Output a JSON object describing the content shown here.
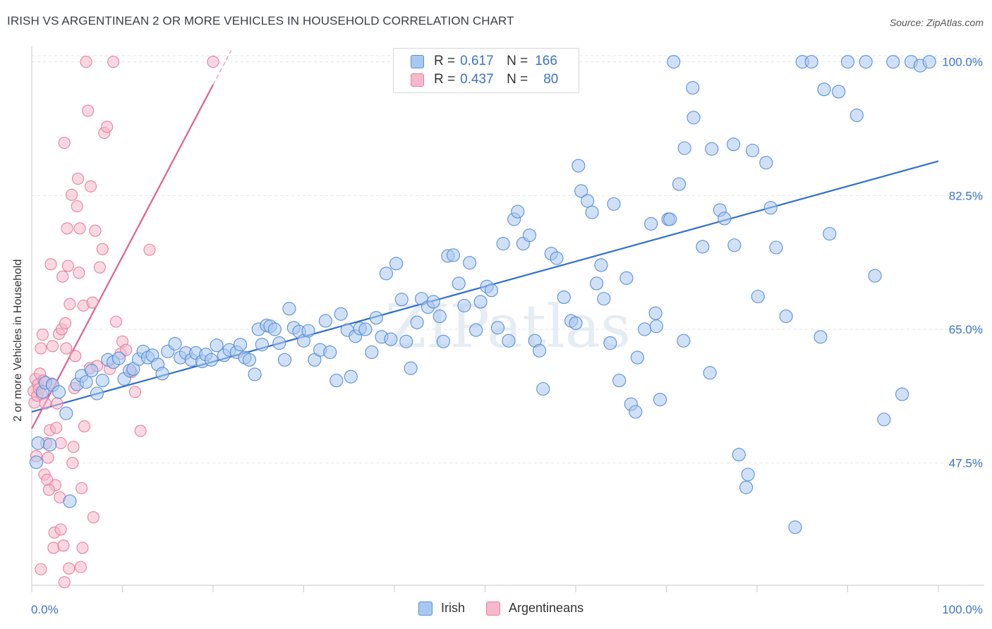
{
  "title": "IRISH VS ARGENTINEAN 2 OR MORE VEHICLES IN HOUSEHOLD CORRELATION CHART",
  "source": "Source: ZipAtlas.com",
  "watermark": "ZIPatlas",
  "legend": {
    "irish": {
      "r_label": "R =",
      "r_value": "0.617",
      "n_label": "N =",
      "n_value": "166"
    },
    "argentinean": {
      "r_label": "R =",
      "r_value": "0.437",
      "n_label": "N =",
      "n_value": "80"
    }
  },
  "bottom_legend": {
    "irish": "Irish",
    "argentinean": "Argentineans"
  },
  "colors": {
    "irish_fill": "#a9c8f0",
    "irish_stroke": "#5b8fd6",
    "irish_line": "#2f6fcc",
    "arg_fill": "#f6b8cb",
    "arg_stroke": "#e87fa0",
    "arg_line": "#e0608e",
    "tick_label": "#3a74c8",
    "grid": "#e3e3e3"
  },
  "chart_data": {
    "type": "scatter",
    "title": "IRISH VS ARGENTINEAN 2 OR MORE VEHICLES IN HOUSEHOLD CORRELATION CHART",
    "xlabel": "",
    "ylabel": "2 or more Vehicles in Household",
    "xlim": [
      0,
      100
    ],
    "ylim": [
      31.5,
      102
    ],
    "x_tick_labels": [
      "0.0%",
      "100.0%"
    ],
    "y_ticks": [
      47.5,
      65.0,
      82.5,
      100.0
    ],
    "y_tick_labels": [
      "47.5%",
      "65.0%",
      "82.5%",
      "100.0%"
    ],
    "series": [
      {
        "name": "Irish",
        "trend": {
          "x": [
            0,
            100
          ],
          "y": [
            54.2,
            87.0
          ]
        },
        "points": [
          [
            0.5,
            47.6
          ],
          [
            0.7,
            50.1
          ],
          [
            1.2,
            56.8
          ],
          [
            1.5,
            58.0
          ],
          [
            2.0,
            49.9
          ],
          [
            2.3,
            57.7
          ],
          [
            3.0,
            56.8
          ],
          [
            3.8,
            54.0
          ],
          [
            4.2,
            42.5
          ],
          [
            5.0,
            57.8
          ],
          [
            5.5,
            58.9
          ],
          [
            6.0,
            58.1
          ],
          [
            6.6,
            59.6
          ],
          [
            7.2,
            56.6
          ],
          [
            7.8,
            58.3
          ],
          [
            8.4,
            61.0
          ],
          [
            9.0,
            60.7
          ],
          [
            9.6,
            61.2
          ],
          [
            10.2,
            58.5
          ],
          [
            10.8,
            59.6
          ],
          [
            11.2,
            59.8
          ],
          [
            11.8,
            61.1
          ],
          [
            12.3,
            62.1
          ],
          [
            12.8,
            61.3
          ],
          [
            13.3,
            61.6
          ],
          [
            13.9,
            60.4
          ],
          [
            14.4,
            59.2
          ],
          [
            15.0,
            62.1
          ],
          [
            15.8,
            63.1
          ],
          [
            16.4,
            61.3
          ],
          [
            17.0,
            61.9
          ],
          [
            17.6,
            61.0
          ],
          [
            18.1,
            61.9
          ],
          [
            18.8,
            60.8
          ],
          [
            19.2,
            61.7
          ],
          [
            19.8,
            61.0
          ],
          [
            20.4,
            62.9
          ],
          [
            21.2,
            61.6
          ],
          [
            21.8,
            62.3
          ],
          [
            22.6,
            62.0
          ],
          [
            23.0,
            63.0
          ],
          [
            23.5,
            61.3
          ],
          [
            24.0,
            61.0
          ],
          [
            24.6,
            59.1
          ],
          [
            25.0,
            65.0
          ],
          [
            25.4,
            63.0
          ],
          [
            25.9,
            65.5
          ],
          [
            26.3,
            65.4
          ],
          [
            26.8,
            65.0
          ],
          [
            27.3,
            63.2
          ],
          [
            27.9,
            61.0
          ],
          [
            28.4,
            67.7
          ],
          [
            28.9,
            65.2
          ],
          [
            29.5,
            64.7
          ],
          [
            30.0,
            63.5
          ],
          [
            30.5,
            64.8
          ],
          [
            31.2,
            61.0
          ],
          [
            31.8,
            62.3
          ],
          [
            32.4,
            66.1
          ],
          [
            32.9,
            62.0
          ],
          [
            33.6,
            58.3
          ],
          [
            34.1,
            67.0
          ],
          [
            34.8,
            64.9
          ],
          [
            35.2,
            58.8
          ],
          [
            35.7,
            64.1
          ],
          [
            36.2,
            65.1
          ],
          [
            36.8,
            65.0
          ],
          [
            37.5,
            62.0
          ],
          [
            38.0,
            66.5
          ],
          [
            38.6,
            64.0
          ],
          [
            39.1,
            72.3
          ],
          [
            39.6,
            63.7
          ],
          [
            40.2,
            73.6
          ],
          [
            40.8,
            68.9
          ],
          [
            41.3,
            63.4
          ],
          [
            41.8,
            59.9
          ],
          [
            42.5,
            65.9
          ],
          [
            43.0,
            69.0
          ],
          [
            43.7,
            67.9
          ],
          [
            44.3,
            68.6
          ],
          [
            45.0,
            66.7
          ],
          [
            45.4,
            63.4
          ],
          [
            45.9,
            74.6
          ],
          [
            46.5,
            74.7
          ],
          [
            47.1,
            71.0
          ],
          [
            47.7,
            68.1
          ],
          [
            48.3,
            73.7
          ],
          [
            49.0,
            64.9
          ],
          [
            49.5,
            68.6
          ],
          [
            50.2,
            70.6
          ],
          [
            50.7,
            70.1
          ],
          [
            51.4,
            65.2
          ],
          [
            52.0,
            76.2
          ],
          [
            52.6,
            63.5
          ],
          [
            53.2,
            79.4
          ],
          [
            53.6,
            80.4
          ],
          [
            54.2,
            76.2
          ],
          [
            54.9,
            77.3
          ],
          [
            55.5,
            63.5
          ],
          [
            56.0,
            62.2
          ],
          [
            56.4,
            57.2
          ],
          [
            57.3,
            74.9
          ],
          [
            57.9,
            74.3
          ],
          [
            58.7,
            69.2
          ],
          [
            59.5,
            66.1
          ],
          [
            60.0,
            65.8
          ],
          [
            60.6,
            83.1
          ],
          [
            61.3,
            81.8
          ],
          [
            61.8,
            80.3
          ],
          [
            62.3,
            71.0
          ],
          [
            62.8,
            73.4
          ],
          [
            63.8,
            63.2
          ],
          [
            64.2,
            81.4
          ],
          [
            64.8,
            58.3
          ],
          [
            65.6,
            71.7
          ],
          [
            66.1,
            55.2
          ],
          [
            66.6,
            54.2
          ],
          [
            67.6,
            65.0
          ],
          [
            68.3,
            78.8
          ],
          [
            68.8,
            67.1
          ],
          [
            68.9,
            65.4
          ],
          [
            69.3,
            55.8
          ],
          [
            70.2,
            79.4
          ],
          [
            70.4,
            79.4
          ],
          [
            71.4,
            84.0
          ],
          [
            71.9,
            63.5
          ],
          [
            72.0,
            88.7
          ],
          [
            72.9,
            96.6
          ],
          [
            74.0,
            75.8
          ],
          [
            74.8,
            59.3
          ],
          [
            75.0,
            88.6
          ],
          [
            75.9,
            80.6
          ],
          [
            76.4,
            79.5
          ],
          [
            77.5,
            76.0
          ],
          [
            78.0,
            48.6
          ],
          [
            78.8,
            44.3
          ],
          [
            79.5,
            88.4
          ],
          [
            80.1,
            69.3
          ],
          [
            81.5,
            80.9
          ],
          [
            82.1,
            75.7
          ],
          [
            83.2,
            66.7
          ],
          [
            85.0,
            100.0
          ],
          [
            86.0,
            100.0
          ],
          [
            87.0,
            64.0
          ],
          [
            88.0,
            77.5
          ],
          [
            89.0,
            96.1
          ],
          [
            90.0,
            100.0
          ],
          [
            91.0,
            93.0
          ],
          [
            92.0,
            100.0
          ],
          [
            93.0,
            72.0
          ],
          [
            94.0,
            53.2
          ],
          [
            95.0,
            100.0
          ],
          [
            96.0,
            56.5
          ],
          [
            97.0,
            100.0
          ],
          [
            98.0,
            99.5
          ],
          [
            99.0,
            100.0
          ],
          [
            70.8,
            100.0
          ],
          [
            73.0,
            92.7
          ],
          [
            79.0,
            46.0
          ],
          [
            84.2,
            39.1
          ],
          [
            77.4,
            89.2
          ],
          [
            60.3,
            86.4
          ],
          [
            63.1,
            69.0
          ],
          [
            66.8,
            61.3
          ],
          [
            81.0,
            86.8
          ],
          [
            87.4,
            96.4
          ]
        ]
      },
      {
        "name": "Argentineans",
        "trend": {
          "x": [
            0,
            22
          ],
          "y": [
            52.0,
            101.5
          ]
        },
        "trend_solid_until_x": 20,
        "points": [
          [
            0.2,
            56.9
          ],
          [
            0.3,
            55.4
          ],
          [
            0.4,
            58.5
          ],
          [
            0.5,
            48.4
          ],
          [
            0.6,
            56.3
          ],
          [
            0.7,
            57.8
          ],
          [
            0.8,
            57.2
          ],
          [
            0.9,
            59.2
          ],
          [
            1.0,
            62.5
          ],
          [
            1.1,
            56.5
          ],
          [
            1.2,
            64.3
          ],
          [
            1.3,
            58.3
          ],
          [
            1.4,
            46.0
          ],
          [
            1.5,
            55.3
          ],
          [
            1.6,
            50.1
          ],
          [
            1.7,
            45.3
          ],
          [
            1.8,
            48.2
          ],
          [
            2.0,
            51.8
          ],
          [
            2.1,
            73.5
          ],
          [
            2.2,
            57.9
          ],
          [
            2.3,
            62.8
          ],
          [
            2.4,
            36.4
          ],
          [
            2.5,
            38.4
          ],
          [
            2.6,
            44.6
          ],
          [
            2.7,
            52.1
          ],
          [
            2.8,
            55.3
          ],
          [
            3.0,
            64.4
          ],
          [
            3.1,
            43.0
          ],
          [
            3.2,
            50.1
          ],
          [
            3.3,
            65.0
          ],
          [
            3.4,
            71.9
          ],
          [
            3.5,
            36.7
          ],
          [
            3.6,
            89.4
          ],
          [
            3.7,
            65.8
          ],
          [
            3.8,
            62.5
          ],
          [
            3.9,
            78.2
          ],
          [
            4.0,
            73.3
          ],
          [
            4.2,
            68.3
          ],
          [
            4.4,
            82.6
          ],
          [
            4.5,
            47.5
          ],
          [
            4.6,
            49.6
          ],
          [
            4.7,
            57.3
          ],
          [
            4.8,
            61.5
          ],
          [
            5.0,
            81.1
          ],
          [
            5.1,
            84.7
          ],
          [
            5.2,
            72.4
          ],
          [
            5.3,
            78.2
          ],
          [
            5.4,
            33.9
          ],
          [
            5.5,
            44.2
          ],
          [
            5.6,
            36.4
          ],
          [
            5.7,
            68.1
          ],
          [
            5.8,
            52.3
          ],
          [
            6.0,
            100.0
          ],
          [
            6.2,
            93.6
          ],
          [
            6.4,
            59.9
          ],
          [
            6.5,
            83.7
          ],
          [
            6.7,
            68.5
          ],
          [
            7.0,
            77.9
          ],
          [
            7.2,
            60.2
          ],
          [
            7.5,
            73.1
          ],
          [
            7.8,
            75.5
          ],
          [
            8.0,
            90.7
          ],
          [
            8.3,
            91.5
          ],
          [
            8.6,
            59.8
          ],
          [
            9.0,
            100.0
          ],
          [
            9.3,
            66.0
          ],
          [
            9.8,
            61.8
          ],
          [
            10.0,
            63.4
          ],
          [
            10.4,
            62.3
          ],
          [
            11.0,
            59.4
          ],
          [
            11.4,
            56.8
          ],
          [
            12.0,
            51.7
          ],
          [
            13.0,
            75.4
          ],
          [
            20.0,
            100.0
          ],
          [
            1.0,
            33.6
          ],
          [
            4.1,
            33.7
          ],
          [
            3.2,
            38.8
          ],
          [
            6.8,
            40.4
          ],
          [
            3.6,
            31.9
          ],
          [
            1.9,
            44.0
          ]
        ]
      }
    ]
  }
}
